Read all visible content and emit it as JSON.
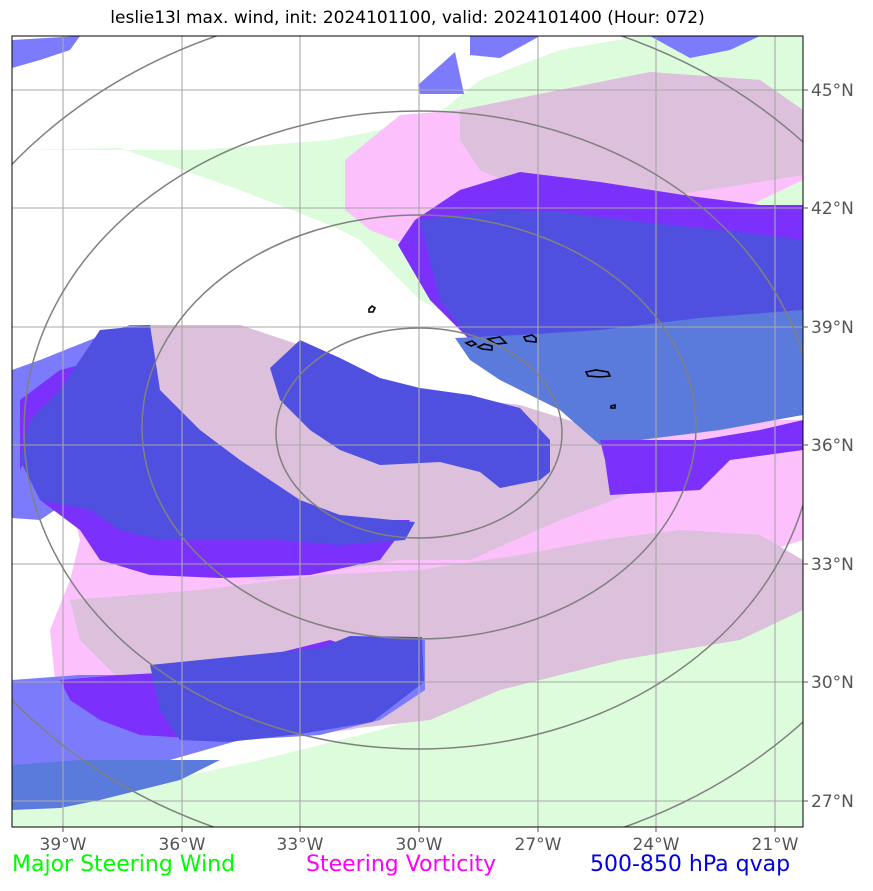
{
  "title": "leslie13l max. wind, init: 2024101100, valid: 2024101400 (Hour: 072)",
  "map": {
    "lon_labels": [
      "39°W",
      "36°W",
      "33°W",
      "30°W",
      "27°W",
      "24°W",
      "21°W"
    ],
    "lat_labels": [
      "45°N",
      "42°N",
      "39°N",
      "36°N",
      "33°N",
      "30°N",
      "27°N"
    ],
    "lon_range": [
      -40.3,
      -20.3
    ],
    "lat_range": [
      26.3,
      46.3
    ],
    "storm_center": {
      "lon": -30.0,
      "lat": 36.0
    },
    "range_rings": 4,
    "fields": [
      {
        "name": "major-steering-wind",
        "color": "#dcfcdc"
      },
      {
        "name": "steering-vorticity",
        "color": "#fcc0fc"
      },
      {
        "name": "qvap",
        "colors": [
          "#7b7bfc",
          "#7b30fc",
          "#5050e0",
          "#5b7bdc"
        ]
      },
      {
        "name": "max-wind-contour",
        "color": "#000000"
      }
    ]
  },
  "legend": {
    "steering_wind": {
      "label": "Major Steering Wind",
      "color": "#00fc00"
    },
    "vorticity": {
      "label": "Steering Vorticity",
      "color": "#fc00fc"
    },
    "qvap": {
      "label": "500-850 hPa qvap",
      "color": "#0000e0"
    }
  }
}
